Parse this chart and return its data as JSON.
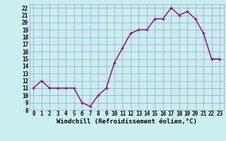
{
  "x": [
    0,
    1,
    2,
    3,
    4,
    5,
    6,
    7,
    8,
    9,
    10,
    11,
    12,
    13,
    14,
    15,
    16,
    17,
    18,
    19,
    20,
    21,
    22,
    23
  ],
  "y": [
    11,
    12,
    11,
    11,
    11,
    11,
    9,
    8.5,
    10,
    11,
    14.5,
    16.5,
    18.5,
    19,
    19,
    20.5,
    20.5,
    22,
    21,
    21.5,
    20.5,
    18.5,
    15,
    15
  ],
  "line_color": "#880088",
  "marker_color": "#880088",
  "bg_color": "#c8eef0",
  "grid_color": "#a0a0c8",
  "xlabel": "Windchill (Refroidissement éolien,°C)",
  "ylabel": "",
  "xlim": [
    -0.5,
    23.5
  ],
  "ylim": [
    8,
    22.5
  ],
  "yticks": [
    8,
    9,
    10,
    11,
    12,
    13,
    14,
    15,
    16,
    17,
    18,
    19,
    20,
    21,
    22
  ],
  "xticks": [
    0,
    1,
    2,
    3,
    4,
    5,
    6,
    7,
    8,
    9,
    10,
    11,
    12,
    13,
    14,
    15,
    16,
    17,
    18,
    19,
    20,
    21,
    22,
    23
  ],
  "xlabel_fontsize": 6.5,
  "tick_fontsize": 5.5,
  "line_width": 1.0,
  "marker_size": 3.5
}
